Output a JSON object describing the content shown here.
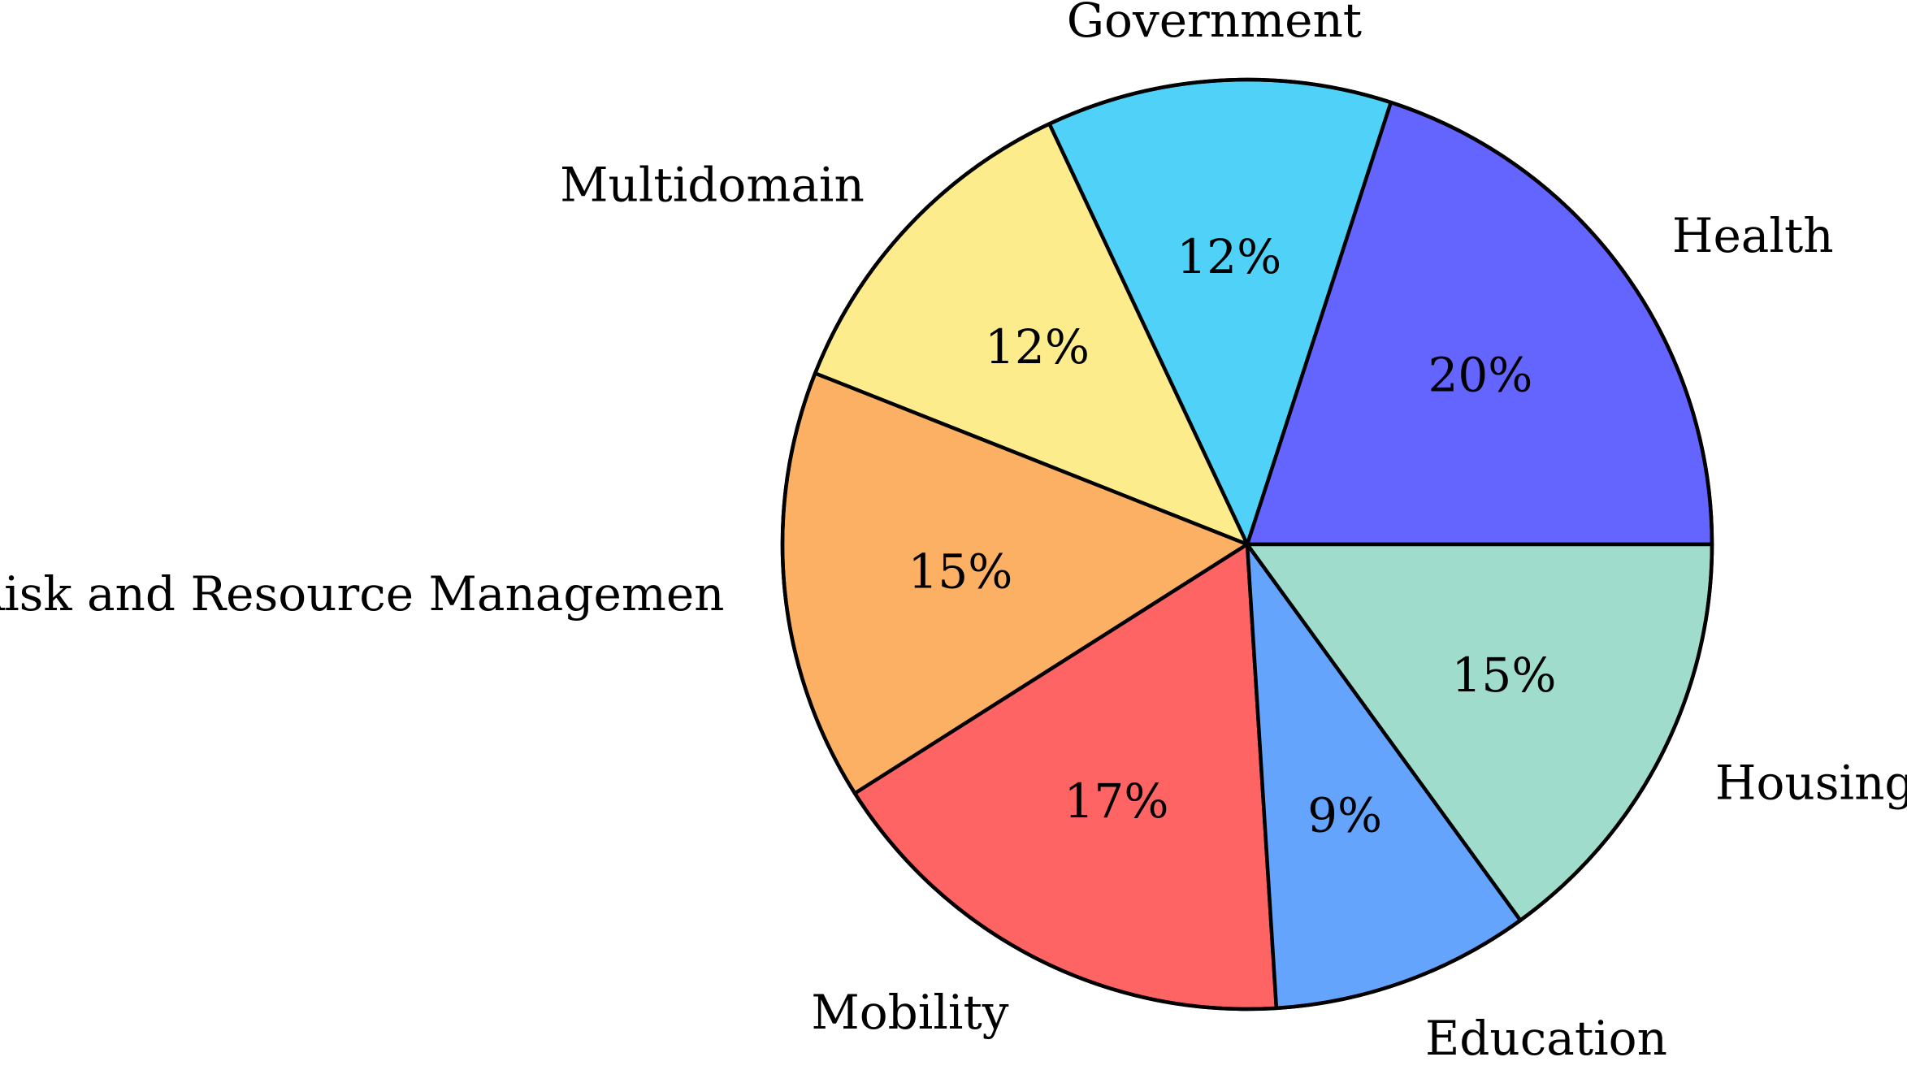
{
  "chart_data": {
    "type": "pie",
    "title": "",
    "start_angle_deg": 0,
    "direction": "counterclockwise",
    "slices": [
      {
        "label": "Health",
        "value": 20,
        "pct_label": "20%",
        "color": "#6464ff"
      },
      {
        "label": "Government",
        "value": 12,
        "pct_label": "12%",
        "color": "#50d2f8"
      },
      {
        "label": "Multidomain",
        "value": 12,
        "pct_label": "12%",
        "color": "#fcec8c"
      },
      {
        "label": "Risk and Resource Managemen",
        "value": 15,
        "pct_label": "15%",
        "color": "#fcb064"
      },
      {
        "label": "Mobility",
        "value": 17,
        "pct_label": "17%",
        "color": "#ff6464"
      },
      {
        "label": "Education",
        "value": 9,
        "pct_label": "9%",
        "color": "#64a4fc"
      },
      {
        "label": "Housing",
        "value": 15,
        "pct_label": "15%",
        "color": "#a0dccc"
      }
    ]
  }
}
